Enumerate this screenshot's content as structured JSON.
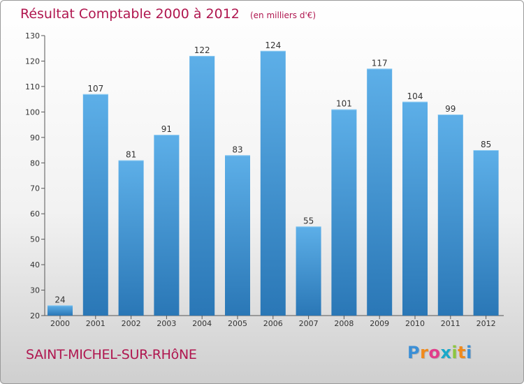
{
  "title": "Résultat Comptable 2000 à 2012",
  "subtitle": "(en milliers d'€)",
  "town": "SAINT-MICHEL-SUR-RHôNE",
  "logo_letters": [
    "P",
    "r",
    "o",
    "x",
    "i",
    "t",
    "i"
  ],
  "logo_colors": [
    "#3b8fd6",
    "#f08a1c",
    "#e23d8b",
    "#1aa9c9",
    "#8cc63f",
    "#f08a1c",
    "#3b8fd6"
  ],
  "colors": {
    "accent": "#b0164f",
    "bar_light": "#5dafe8",
    "bar_dark": "#2a77b6",
    "axis": "#555555"
  },
  "chart_data": {
    "type": "bar",
    "title": "Résultat Comptable 2000 à 2012",
    "ylabel": "en milliers d'€",
    "xlabel": "",
    "categories": [
      "2000",
      "2001",
      "2002",
      "2003",
      "2004",
      "2005",
      "2006",
      "2007",
      "2008",
      "2009",
      "2010",
      "2011",
      "2012"
    ],
    "values": [
      24,
      107,
      81,
      91,
      122,
      83,
      124,
      55,
      101,
      117,
      104,
      99,
      85
    ],
    "ylim": [
      20,
      130
    ],
    "yticks": [
      20,
      30,
      40,
      50,
      60,
      70,
      80,
      90,
      100,
      110,
      120,
      130
    ],
    "grid": false,
    "legend": "none"
  }
}
